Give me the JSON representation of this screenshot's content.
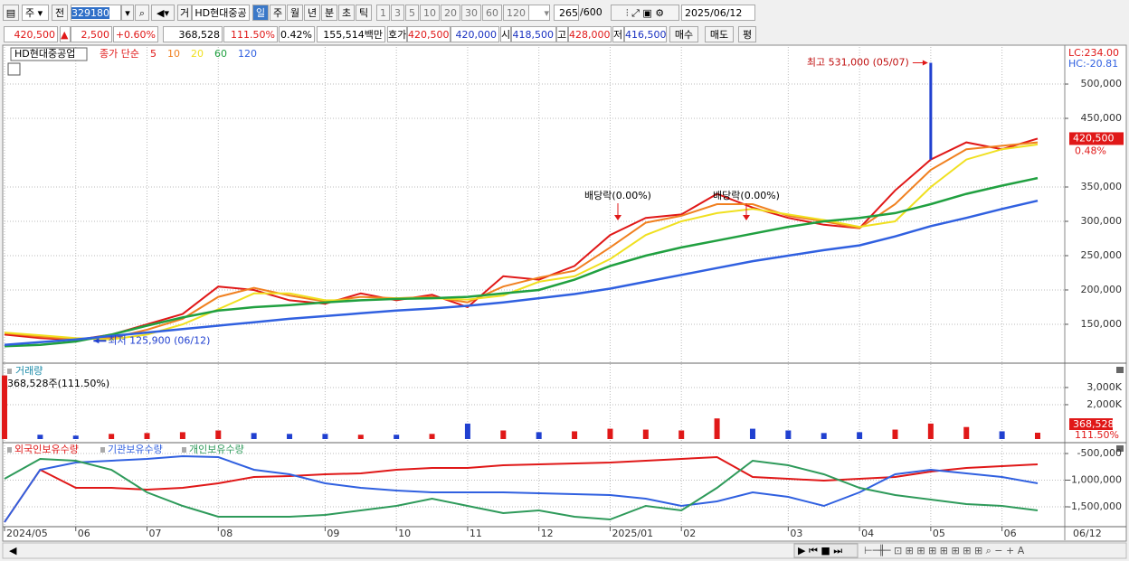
{
  "toolbar": {
    "market": "주",
    "mode": "전",
    "code": "329180",
    "type_prefix": "거",
    "name": "HD현대중공",
    "periods": [
      "일",
      "주",
      "월",
      "년",
      "분",
      "초",
      "틱"
    ],
    "intervals": [
      "1",
      "3",
      "5",
      "10",
      "20",
      "30",
      "60",
      "120"
    ],
    "count": "265",
    "max": "/600",
    "date": "2025/06/12"
  },
  "quote": {
    "price": "420,500",
    "arrow": "▲",
    "change": "2,500",
    "change_pct": "+0.60%",
    "volume": "368,528",
    "volume_ratio": "111.50%",
    "turnover": "0.42%",
    "amount": "155,514백만",
    "bid_label": "호가",
    "ask": "420,500",
    "bid": "420,000",
    "open_label": "시",
    "open": "418,500",
    "high_label": "고",
    "high": "428,000",
    "low_label": "저",
    "low": "416,500",
    "buttons": [
      "매수",
      "매도",
      "평"
    ]
  },
  "chart_data": [
    {
      "type": "line",
      "title": "HD현대중공업",
      "legend_prefix": "종가 단순",
      "ylim": [
        96000,
        554000
      ],
      "yticks": [
        {
          "value": 150000,
          "label": "150,000"
        },
        {
          "value": 200000,
          "label": "200,000"
        },
        {
          "value": 250000,
          "label": "250,000"
        },
        {
          "value": 300000,
          "label": "300,000"
        },
        {
          "value": 350000,
          "label": "350,000"
        },
        {
          "value": 450000,
          "label": "450,000"
        },
        {
          "value": 500000,
          "label": "500,000"
        }
      ],
      "grid": true,
      "series": [
        {
          "name": "5",
          "color": "#e01818",
          "values": [
            135000,
            130000,
            127000,
            135000,
            150000,
            165000,
            205000,
            200000,
            185000,
            180000,
            195000,
            185000,
            193000,
            175000,
            220000,
            215000,
            235000,
            280000,
            305000,
            310000,
            340000,
            320000,
            305000,
            295000,
            290000,
            345000,
            390000,
            415000,
            405000,
            420500
          ]
        },
        {
          "name": "10",
          "color": "#f08020",
          "values": [
            137000,
            132000,
            128000,
            130000,
            142000,
            158000,
            190000,
            203000,
            192000,
            183000,
            190000,
            188000,
            190000,
            182000,
            205000,
            218000,
            228000,
            262000,
            298000,
            308000,
            325000,
            325000,
            308000,
            300000,
            290000,
            325000,
            375000,
            405000,
            410000,
            415000
          ]
        },
        {
          "name": "20",
          "color": "#f0e020",
          "values": [
            138000,
            134000,
            130000,
            128000,
            135000,
            150000,
            172000,
            195000,
            195000,
            185000,
            185000,
            188000,
            188000,
            186000,
            192000,
            212000,
            220000,
            245000,
            280000,
            300000,
            312000,
            318000,
            310000,
            302000,
            292000,
            300000,
            350000,
            390000,
            405000,
            412000
          ]
        },
        {
          "name": "60",
          "color": "#20a040",
          "values": [
            118000,
            120000,
            125000,
            135000,
            148000,
            160000,
            170000,
            175000,
            178000,
            182000,
            185000,
            187000,
            188000,
            190000,
            195000,
            200000,
            215000,
            235000,
            250000,
            262000,
            272000,
            282000,
            292000,
            300000,
            305000,
            312000,
            325000,
            340000,
            352000,
            363000
          ]
        },
        {
          "name": "120",
          "color": "#3060e0",
          "values": [
            120000,
            124000,
            128000,
            133000,
            138000,
            143000,
            148000,
            153000,
            158000,
            162000,
            166000,
            170000,
            173000,
            177000,
            182000,
            188000,
            194000,
            202000,
            212000,
            222000,
            232000,
            242000,
            250000,
            258000,
            265000,
            278000,
            293000,
            305000,
            318000,
            330000
          ]
        }
      ],
      "high": {
        "value": 531000,
        "label": "최고 531,000 (05/07)"
      },
      "low": {
        "value": 125900,
        "label": "최저 125,900 (06/12)"
      },
      "annotations": [
        "배당락(0.00%)",
        "배당락(0.00%)"
      ],
      "last": {
        "value": 420500,
        "label": "420,500"
      },
      "last_change": "0.48%",
      "lc": "LC:234.00",
      "hc": "HC:-20.81"
    },
    {
      "type": "bar",
      "title": "거래량",
      "subtitle": "368,528주(111.50%)",
      "ylim": [
        0,
        4260000
      ],
      "yticks": [
        {
          "value": 2000000,
          "label": "2,000K"
        },
        {
          "value": 3000000,
          "label": "3,000K"
        }
      ],
      "up_color": "#e01818",
      "down_color": "#2040d0",
      "values": [
        3700000,
        250000,
        200000,
        300000,
        350000,
        400000,
        500000,
        350000,
        300000,
        300000,
        250000,
        250000,
        300000,
        900000,
        500000,
        400000,
        450000,
        600000,
        550000,
        500000,
        1200000,
        600000,
        500000,
        350000,
        400000,
        550000,
        900000,
        700000,
        450000,
        368528
      ],
      "last_label": "368,528",
      "last_ratio": "111.50%"
    },
    {
      "type": "line",
      "ylim": [
        -1873000,
        -330000
      ],
      "yticks": [
        {
          "value": -500000,
          "label": "-500,000"
        },
        {
          "value": -1000000,
          "label": "-1,000,000"
        },
        {
          "value": -1500000,
          "label": "-1,500,000"
        }
      ],
      "series": [
        {
          "name": "외국인보유수량",
          "color": "#e01818",
          "values": [
            -1788000,
            -805000,
            -1144000,
            -1144000,
            -1178000,
            -1144000,
            -1059000,
            -941000,
            -924000,
            -890000,
            -873000,
            -805000,
            -771000,
            -771000,
            -720000,
            -703000,
            -686000,
            -669000,
            -636000,
            -602000,
            -568000,
            -941000,
            -975000,
            -1008000,
            -975000,
            -941000,
            -839000,
            -771000,
            -737000,
            -703000
          ]
        },
        {
          "name": "기관보유수량",
          "color": "#3060e0",
          "values": [
            -1788000,
            -805000,
            -669000,
            -636000,
            -602000,
            -551000,
            -568000,
            -805000,
            -890000,
            -1059000,
            -1144000,
            -1195000,
            -1229000,
            -1229000,
            -1229000,
            -1246000,
            -1263000,
            -1280000,
            -1347000,
            -1483000,
            -1398000,
            -1229000,
            -1314000,
            -1483000,
            -1229000,
            -890000,
            -805000,
            -873000,
            -941000,
            -1059000
          ]
        },
        {
          "name": "개인보유수량",
          "color": "#2e9a5a",
          "values": [
            -975000,
            -602000,
            -636000,
            -805000,
            -1229000,
            -1483000,
            -1686000,
            -1686000,
            -1686000,
            -1653000,
            -1568000,
            -1483000,
            -1347000,
            -1483000,
            -1619000,
            -1568000,
            -1686000,
            -1737000,
            -1483000,
            -1568000,
            -1144000,
            -636000,
            -720000,
            -890000,
            -1144000,
            -1280000,
            -1364000,
            -1449000,
            -1483000,
            -1568000
          ]
        }
      ],
      "categories": [
        "2024/05",
        null,
        "06",
        null,
        "07",
        null,
        "08",
        null,
        null,
        "09",
        null,
        "10",
        null,
        "11",
        null,
        "12",
        null,
        "2025/01",
        null,
        "02",
        null,
        null,
        "03",
        null,
        "04",
        null,
        "05",
        null,
        "06",
        null
      ],
      "x_end_label": "06/12"
    }
  ]
}
